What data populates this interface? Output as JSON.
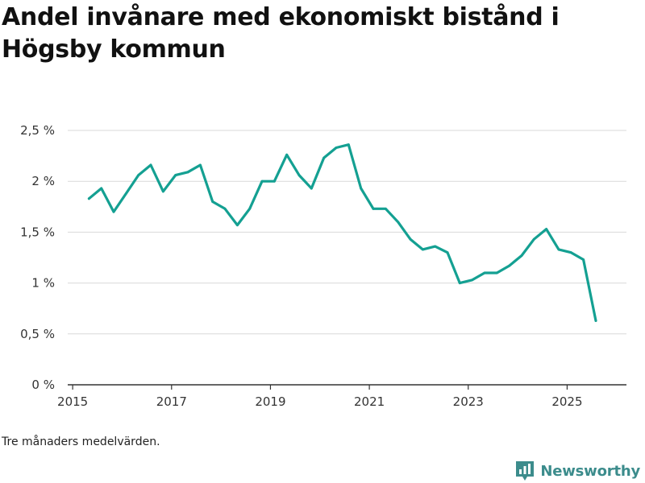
{
  "title": "Andel invånare med ekonomiskt bistånd i Högsby kommun",
  "footnote": "Tre månaders medelvärden.",
  "brand": {
    "name": "Newsworthy",
    "icon": "newsworthy-logo-icon",
    "color": "#3c8c8c"
  },
  "colors": {
    "line": "#14a092",
    "grid": "#d9d9d9",
    "axis": "#333333"
  },
  "chart_data": {
    "type": "line",
    "title": "Andel invånare med ekonomiskt bistånd i Högsby kommun",
    "xlabel": "",
    "ylabel": "",
    "xlim": [
      2014.9,
      2026.2
    ],
    "ylim": [
      0,
      2.5
    ],
    "grid": true,
    "legend": "none",
    "x_ticks": [
      2015,
      2017,
      2019,
      2021,
      2023,
      2025
    ],
    "x_tick_labels": [
      "2015",
      "2017",
      "2019",
      "2021",
      "2023",
      "2025"
    ],
    "y_ticks": [
      0,
      0.5,
      1,
      1.5,
      2,
      2.5
    ],
    "y_tick_labels": [
      "0 %",
      "0,5 %",
      "1 %",
      "1,5 %",
      "2 %",
      "2,5 %"
    ],
    "series": [
      {
        "name": "Andel invånare med ekonomiskt bistånd",
        "x": [
          2015.33,
          2015.58,
          2015.83,
          2016.08,
          2016.33,
          2016.58,
          2016.83,
          2017.08,
          2017.33,
          2017.58,
          2017.83,
          2018.08,
          2018.33,
          2018.58,
          2018.83,
          2019.08,
          2019.33,
          2019.58,
          2019.83,
          2020.08,
          2020.33,
          2020.58,
          2020.83,
          2021.08,
          2021.33,
          2021.58,
          2021.83,
          2022.08,
          2022.33,
          2022.58,
          2022.83,
          2023.08,
          2023.33,
          2023.58,
          2023.83,
          2024.08,
          2024.33,
          2024.58,
          2024.83,
          2025.08,
          2025.33,
          2025.58
        ],
        "values": [
          1.83,
          1.93,
          1.7,
          1.88,
          2.06,
          2.16,
          1.9,
          2.06,
          2.09,
          2.16,
          1.8,
          1.73,
          1.57,
          1.73,
          2.0,
          2.0,
          2.26,
          2.06,
          1.93,
          2.23,
          2.33,
          2.36,
          1.93,
          1.73,
          1.73,
          1.6,
          1.43,
          1.33,
          1.36,
          1.3,
          1.0,
          1.03,
          1.1,
          1.1,
          1.17,
          1.27,
          1.43,
          1.53,
          1.33,
          1.3,
          1.23,
          0.63
        ]
      }
    ]
  }
}
